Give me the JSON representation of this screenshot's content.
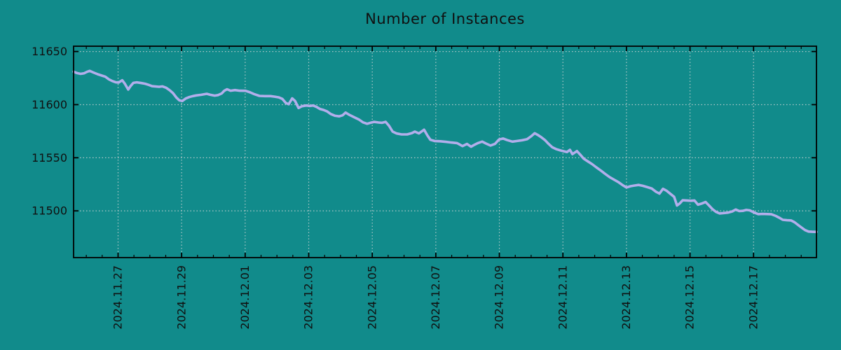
{
  "page": {
    "background_color": "#118b8b"
  },
  "chart_data": {
    "type": "line",
    "title": "Number of Instances",
    "grid": {
      "show": true,
      "style": "dotted",
      "color": "#ccd3d3"
    },
    "axis_color": "#000000",
    "text_color": "#101010",
    "legend": null,
    "x_axis": {
      "unit": "days since 2024-11-25 00:00",
      "range": [
        0.6,
        23.98
      ],
      "minor_tick_hours": 12,
      "label_rotation_deg": -90,
      "major_ticks": [
        {
          "pos": 2,
          "label": "2024.11.27"
        },
        {
          "pos": 4,
          "label": "2024.11.29"
        },
        {
          "pos": 6,
          "label": "2024.12.01"
        },
        {
          "pos": 8,
          "label": "2024.12.03"
        },
        {
          "pos": 10,
          "label": "2024.12.05"
        },
        {
          "pos": 12,
          "label": "2024.12.07"
        },
        {
          "pos": 14,
          "label": "2024.12.09"
        },
        {
          "pos": 16,
          "label": "2024.12.11"
        },
        {
          "pos": 18,
          "label": "2024.12.13"
        },
        {
          "pos": 20,
          "label": "2024.12.15"
        },
        {
          "pos": 22,
          "label": "2024.12.17"
        }
      ]
    },
    "y_axis": {
      "range": [
        11456,
        11655
      ],
      "ticks": [
        11500,
        11550,
        11600,
        11650
      ],
      "tick_labels": [
        "11500",
        "11550",
        "11600",
        "11650"
      ]
    },
    "series": [
      {
        "name": "instances",
        "color": "#b2aeeb",
        "x": [
          0.6,
          0.71,
          0.82,
          0.93,
          1.02,
          1.11,
          1.22,
          1.38,
          1.49,
          1.6,
          1.71,
          1.82,
          1.93,
          2.02,
          2.13,
          2.21,
          2.32,
          2.39,
          2.48,
          2.59,
          2.74,
          2.85,
          2.96,
          3.07,
          3.29,
          3.4,
          3.51,
          3.62,
          3.73,
          3.84,
          3.93,
          4.02,
          4.13,
          4.24,
          4.35,
          4.46,
          4.62,
          4.79,
          4.9,
          5.04,
          5.15,
          5.26,
          5.34,
          5.43,
          5.54,
          5.68,
          5.83,
          6.01,
          6.16,
          6.29,
          6.45,
          6.62,
          6.8,
          6.93,
          7.06,
          7.17,
          7.28,
          7.37,
          7.48,
          7.57,
          7.68,
          7.79,
          7.92,
          8.03,
          8.14,
          8.25,
          8.36,
          8.47,
          8.58,
          8.69,
          8.83,
          8.96,
          9.07,
          9.16,
          9.27,
          9.42,
          9.58,
          9.71,
          9.84,
          9.95,
          10.06,
          10.2,
          10.31,
          10.42,
          10.53,
          10.64,
          10.77,
          10.92,
          11.1,
          11.25,
          11.34,
          11.47,
          11.63,
          11.74,
          11.83,
          11.96,
          12.14,
          12.31,
          12.49,
          12.67,
          12.84,
          12.98,
          13.11,
          13.22,
          13.33,
          13.46,
          13.59,
          13.72,
          13.86,
          13.99,
          14.12,
          14.25,
          14.41,
          14.56,
          14.72,
          14.87,
          15.0,
          15.11,
          15.22,
          15.33,
          15.44,
          15.55,
          15.66,
          15.8,
          15.93,
          16.04,
          16.13,
          16.22,
          16.3,
          16.44,
          16.55,
          16.66,
          16.79,
          16.92,
          17.05,
          17.19,
          17.32,
          17.47,
          17.63,
          17.76,
          17.89,
          18.0,
          18.13,
          18.24,
          18.38,
          18.51,
          18.66,
          18.8,
          18.93,
          19.04,
          19.15,
          19.26,
          19.39,
          19.5,
          19.59,
          19.68,
          19.77,
          19.9,
          20.03,
          20.14,
          20.25,
          20.38,
          20.49,
          20.6,
          20.71,
          20.82,
          20.93,
          21.07,
          21.2,
          21.33,
          21.44,
          21.55,
          21.66,
          21.77,
          21.88,
          22.01,
          22.15,
          22.28,
          22.43,
          22.56,
          22.7,
          22.81,
          22.92,
          23.05,
          23.18,
          23.29,
          23.4,
          23.51,
          23.62,
          23.73,
          23.84,
          23.98
        ],
        "values": [
          11631.0,
          11629.7,
          11629.0,
          11629.5,
          11630.8,
          11631.8,
          11630.3,
          11628.4,
          11627.3,
          11626.3,
          11623.8,
          11622.2,
          11621.0,
          11620.8,
          11623.0,
          11619.8,
          11614.2,
          11617.4,
          11620.5,
          11621.0,
          11620.3,
          11619.7,
          11618.6,
          11617.4,
          11616.8,
          11617.2,
          11615.9,
          11613.7,
          11610.8,
          11606.5,
          11604.0,
          11603.4,
          11605.8,
          11607.1,
          11608.0,
          11608.7,
          11609.3,
          11610.2,
          11609.3,
          11608.5,
          11609.0,
          11610.5,
          11613.0,
          11614.5,
          11613.1,
          11613.7,
          11613.1,
          11613.0,
          11611.5,
          11609.8,
          11608.2,
          11608.0,
          11608.0,
          11607.5,
          11606.8,
          11605.4,
          11601.5,
          11600.4,
          11605.9,
          11603.5,
          11596.8,
          11598.5,
          11599.2,
          11598.7,
          11599.2,
          11597.8,
          11595.8,
          11595.0,
          11593.6,
          11591.2,
          11589.5,
          11589.0,
          11590.0,
          11592.5,
          11590.5,
          11588.3,
          11586.0,
          11583.3,
          11582.0,
          11583.0,
          11583.8,
          11583.2,
          11582.9,
          11583.8,
          11580.0,
          11574.6,
          11572.8,
          11572.0,
          11572.0,
          11573.2,
          11574.6,
          11572.9,
          11576.4,
          11570.7,
          11566.9,
          11565.8,
          11565.5,
          11565.0,
          11564.3,
          11563.8,
          11561.0,
          11563.0,
          11560.4,
          11562.3,
          11563.9,
          11565.2,
          11563.3,
          11561.5,
          11563.0,
          11567.2,
          11568.1,
          11566.6,
          11565.2,
          11565.8,
          11566.5,
          11567.4,
          11570.2,
          11573.1,
          11571.3,
          11569.1,
          11566.5,
          11563.0,
          11560.0,
          11558.0,
          11556.8,
          11556.0,
          11555.4,
          11557.5,
          11553.4,
          11556.3,
          11552.8,
          11549.0,
          11546.5,
          11544.0,
          11541.0,
          11538.0,
          11535.0,
          11531.7,
          11529.0,
          11526.8,
          11524.0,
          11522.0,
          11523.2,
          11523.8,
          11524.4,
          11523.6,
          11522.3,
          11521.0,
          11518.0,
          11516.2,
          11520.8,
          11519.0,
          11515.8,
          11513.2,
          11505.0,
          11507.0,
          11510.0,
          11509.8,
          11509.5,
          11509.8,
          11505.8,
          11507.0,
          11508.3,
          11505.0,
          11501.5,
          11499.0,
          11497.6,
          11498.0,
          11498.4,
          11499.5,
          11501.3,
          11499.8,
          11500.0,
          11500.9,
          11500.5,
          11498.6,
          11496.9,
          11497.1,
          11497.0,
          11496.8,
          11495.2,
          11493.5,
          11491.6,
          11491.2,
          11491.0,
          11489.3,
          11486.8,
          11484.3,
          11481.9,
          11480.5,
          11480.3,
          11480.2
        ]
      }
    ]
  }
}
